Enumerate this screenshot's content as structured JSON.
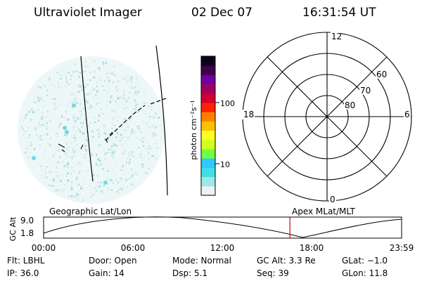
{
  "header": {
    "instrument": "Ultraviolet Imager",
    "date": "02 Dec 07",
    "time": "16:31:54 UT"
  },
  "colorbar": {
    "label": "photon cm⁻²s⁻¹",
    "ticks": [
      "100",
      "10"
    ],
    "colors": [
      "#e8f4f4",
      "#9fe6e6",
      "#40e0e0",
      "#30c8ff",
      "#70ff40",
      "#d0ff20",
      "#ffff20",
      "#ffc000",
      "#ff8000",
      "#ff2000",
      "#d00030",
      "#a00060",
      "#7000a0",
      "#400050",
      "#100020"
    ]
  },
  "polar_plot": {
    "mlt_labels": {
      "top": "12",
      "left": "18",
      "right": "6",
      "bottom": "0"
    },
    "lat_labels": [
      "60",
      "70",
      "80"
    ]
  },
  "timeline": {
    "left_label": "Geographic Lat/Lon",
    "right_label": "Apex MLat/MLT",
    "axis_title": "GC Alt",
    "y_ticks": [
      "9.0",
      "1.8"
    ],
    "x_ticks": [
      "00:00",
      "06:00",
      "12:00",
      "18:00",
      "23:59"
    ],
    "current_fraction": 0.688,
    "marker_color": "#d00000"
  },
  "status": {
    "row1": {
      "flt": "Flt: LBHL",
      "door": "Door: Open",
      "mode": "Mode: Normal",
      "gcalt": "GC Alt: 3.3 Re",
      "glat": "GLat:  −1.0"
    },
    "row2": {
      "ip": "IP: 36.0",
      "gain": "Gain: 14",
      "dsp": "Dsp:     5.1",
      "seq": "Seq: 39",
      "glon": "GLon:  11.8"
    }
  }
}
